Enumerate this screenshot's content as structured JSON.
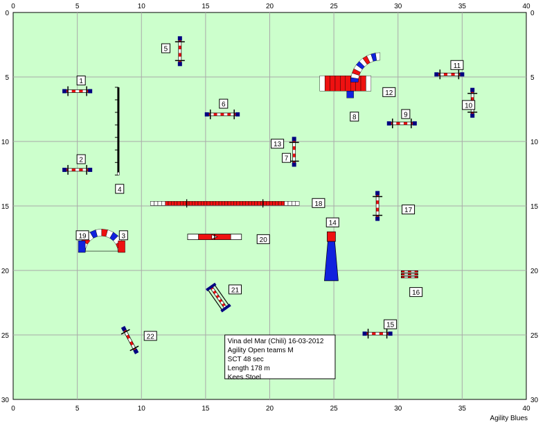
{
  "course": {
    "x_range": [
      0,
      40
    ],
    "y_range": [
      0,
      30
    ],
    "grid": true,
    "field_color": "#ccffcc",
    "grid_color": "#a9a9a9",
    "x_ticks": [
      0,
      5,
      10,
      15,
      20,
      25,
      30,
      35,
      40
    ],
    "y_ticks": [
      0,
      5,
      10,
      15,
      20,
      25,
      30
    ],
    "colors": {
      "red": "#ee1111",
      "blue": "#1122dd",
      "white": "#ffffff",
      "dark_blue": "#000080"
    }
  },
  "obstacles": [
    {
      "num": "1",
      "type": "jump",
      "x": 5,
      "y": 6.1,
      "angle": 0,
      "length": 2
    },
    {
      "num": "2",
      "type": "jump",
      "x": 5,
      "y": 12.2,
      "angle": 0,
      "length": 2
    },
    {
      "num": "3",
      "type": "tunnel_curve",
      "end": "right"
    },
    {
      "num": "4",
      "type": "dogwalk",
      "x": 8.2,
      "y": 9.2,
      "angle": 90,
      "length": 6.8
    },
    {
      "num": "5",
      "type": "jump",
      "x": 13,
      "y": 3,
      "angle": 90,
      "length": 2
    },
    {
      "num": "6",
      "type": "jump",
      "x": 16.3,
      "y": 7.9,
      "angle": 0,
      "length": 2.4
    },
    {
      "num": "7",
      "type": "jump",
      "x": 21.9,
      "y": 10.8,
      "angle": 90,
      "length": 2
    },
    {
      "num": "8",
      "type": "tunnel_curve_12",
      "end": "bottom"
    },
    {
      "num": "9",
      "type": "jump",
      "x": 30.3,
      "y": 8.6,
      "angle": 0,
      "length": 2
    },
    {
      "num": "10",
      "type": "jump",
      "x": 35.8,
      "y": 7,
      "angle": 90,
      "length": 2
    },
    {
      "num": "11",
      "type": "jump",
      "x": 34,
      "y": 4.8,
      "angle": 0,
      "length": 2
    },
    {
      "num": "12",
      "type": "tunnel_curve_12",
      "end": "top"
    },
    {
      "num": "13",
      "type": "jump",
      "x": 21.9,
      "y": 10.8,
      "angle": 90,
      "length": 2
    },
    {
      "num": "14",
      "type": "chute",
      "x": 24.8,
      "y": 17,
      "length": 3.8
    },
    {
      "num": "15",
      "type": "jump",
      "x": 28.4,
      "y": 24.9,
      "angle": 0,
      "length": 2
    },
    {
      "num": "16",
      "type": "double_jump",
      "x": 30.9,
      "y": 20.3
    },
    {
      "num": "17",
      "type": "jump",
      "x": 28.4,
      "y": 15,
      "angle": 90,
      "length": 2
    },
    {
      "num": "18",
      "type": "dogwalk",
      "x": 16.5,
      "y": 14.8,
      "angle": 0,
      "length": 11.6
    },
    {
      "num": "19",
      "type": "tunnel_curve",
      "end": "left"
    },
    {
      "num": "20",
      "type": "aframe",
      "x": 15.7,
      "y": 17.4,
      "length": 4.2
    },
    {
      "num": "21",
      "type": "tire_jump",
      "x": 16,
      "y": 22.1,
      "angle": 55,
      "length": 2
    },
    {
      "num": "22",
      "type": "jump",
      "x": 9.1,
      "y": 25.4,
      "angle": 62,
      "length": 2
    }
  ],
  "labels": [
    {
      "num": "1",
      "x": 5.3,
      "y": 5.3
    },
    {
      "num": "2",
      "x": 5.3,
      "y": 11.4
    },
    {
      "num": "3",
      "x": 8.6,
      "y": 17.3
    },
    {
      "num": "4",
      "x": 8.3,
      "y": 13.7
    },
    {
      "num": "5",
      "x": 11.9,
      "y": 2.8
    },
    {
      "num": "6",
      "x": 16.4,
      "y": 7.1
    },
    {
      "num": "7",
      "x": 21.3,
      "y": 11.3
    },
    {
      "num": "8",
      "x": 26.6,
      "y": 8.1
    },
    {
      "num": "9",
      "x": 30.6,
      "y": 7.9
    },
    {
      "num": "10",
      "x": 35.5,
      "y": 7.2
    },
    {
      "num": "11",
      "x": 34.6,
      "y": 4.1
    },
    {
      "num": "12",
      "x": 29.3,
      "y": 6.2
    },
    {
      "num": "13",
      "x": 20.6,
      "y": 10.2
    },
    {
      "num": "14",
      "x": 24.9,
      "y": 16.3
    },
    {
      "num": "15",
      "x": 29.4,
      "y": 24.2
    },
    {
      "num": "16",
      "x": 31.4,
      "y": 21.7
    },
    {
      "num": "17",
      "x": 30.8,
      "y": 15.3
    },
    {
      "num": "18",
      "x": 23.8,
      "y": 14.8
    },
    {
      "num": "19",
      "x": 5.4,
      "y": 17.3
    },
    {
      "num": "20",
      "x": 19.5,
      "y": 17.6
    },
    {
      "num": "21",
      "x": 17.3,
      "y": 21.5
    },
    {
      "num": "22",
      "x": 10.7,
      "y": 25.1
    }
  ],
  "info": {
    "lines": [
      "Vina del Mar (Chili) 16-03-2012",
      "Agility Open teams M",
      "SCT 48 sec",
      "Length 178 m",
      "Kees Stoel"
    ]
  },
  "footer": "Agility Blues"
}
